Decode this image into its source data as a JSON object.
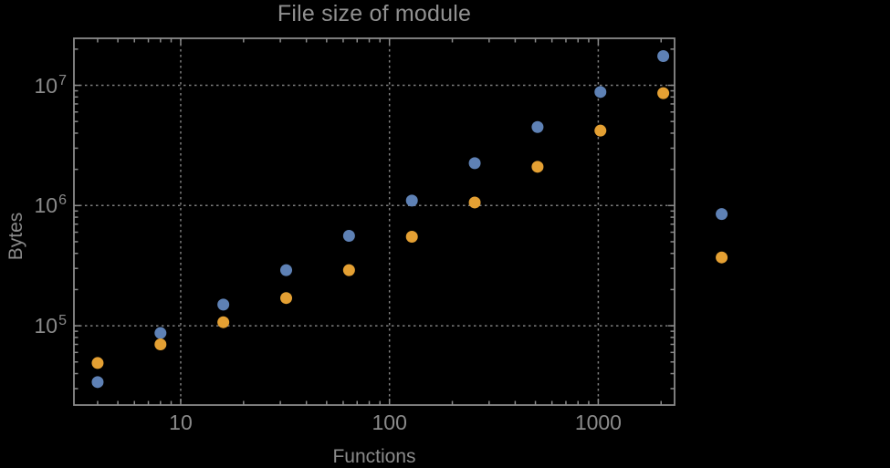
{
  "title": "File size of module",
  "chart_data": {
    "type": "scatter",
    "title": "File size of module",
    "xlabel": "Functions",
    "ylabel": "Bytes",
    "x_scale": "log",
    "y_scale": "log",
    "xlim": [
      3.08,
      2320
    ],
    "ylim": [
      21900,
      24600000
    ],
    "grid": "dotted gridlines at powers of 10; closed frame with inward ticks on all four edges",
    "legend": "none",
    "x": [
      4,
      8,
      16,
      32,
      64,
      128,
      256,
      512,
      1024,
      2048,
      3900
    ],
    "series": [
      {
        "name": "blue-series",
        "color": "#5e81b5",
        "values": [
          34000,
          87000,
          150000,
          290000,
          560000,
          1100000,
          2250000,
          4500000,
          8800000,
          17500000,
          850000
        ]
      },
      {
        "name": "orange-series",
        "color": "#e4a033",
        "values": [
          49000,
          70000,
          107000,
          170000,
          290000,
          550000,
          1060000,
          2100000,
          4200000,
          8600000,
          370000
        ]
      }
    ],
    "x_ticks": [
      {
        "label": "10",
        "value": 10
      },
      {
        "label": "100",
        "value": 100
      },
      {
        "label": "1000",
        "value": 1000
      }
    ],
    "y_ticks": [
      {
        "base": "10",
        "exp": "5",
        "value": 100000
      },
      {
        "base": "10",
        "exp": "6",
        "value": 1000000
      },
      {
        "base": "10",
        "exp": "7",
        "value": 10000000
      }
    ],
    "note": "Rightmost pair of points (x ≈ 3900) is drawn outside the right edge of the plot frame"
  },
  "colors": {
    "background": "#000000",
    "frame": "#8a8a8a",
    "grid": "#7d7d7d",
    "text": "#8a8a8a",
    "series1": "#5e81b5",
    "series2": "#e4a033"
  }
}
